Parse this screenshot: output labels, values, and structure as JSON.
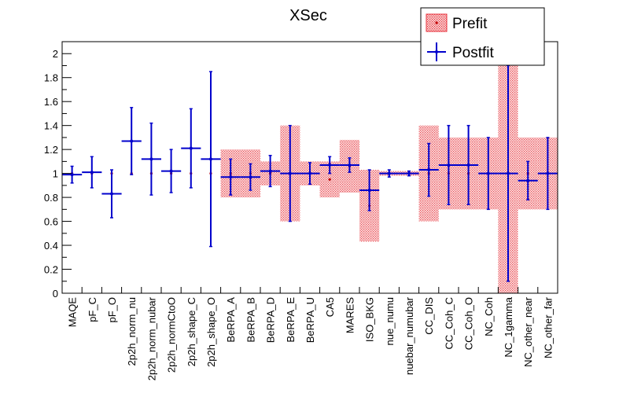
{
  "chart_data": {
    "type": "scatter",
    "title": "XSec",
    "xlabel": "",
    "ylabel": "",
    "ylim": [
      0,
      2.1
    ],
    "yticks": [
      "0",
      "0.2",
      "0.4",
      "0.6",
      "0.8",
      "1",
      "1.2",
      "1.4",
      "1.6",
      "1.8",
      "2"
    ],
    "grid": false,
    "legend_position": "top-right",
    "categories": [
      "MAQE",
      "pF_C",
      "pF_O",
      "2p2h_norm_nu",
      "2p2h_norm_nubar",
      "2p2h_normCtoO",
      "2p2h_shape_C",
      "2p2h_shape_O",
      "BeRPA_A",
      "BeRPA_B",
      "BeRPA_D",
      "BeRPA_E",
      "BeRPA_U",
      "CA5",
      "MARES",
      "ISO_BKG",
      "nue_numu",
      "nuebar_numubar",
      "CC_DIS",
      "CC_Coh_C",
      "CC_Coh_O",
      "NC_Coh",
      "NC_1gamma",
      "NC_other_near",
      "NC_other_far"
    ],
    "series": [
      {
        "name": "Prefit",
        "color": "#e8323c",
        "values": [
          1,
          1,
          1,
          1,
          1,
          1,
          1,
          1,
          1,
          1,
          1,
          1,
          1,
          0.95,
          1.06,
          0.73,
          1,
          1,
          1,
          1,
          1,
          1,
          1,
          1,
          1
        ],
        "errors": [
          0,
          0,
          0,
          0,
          0,
          0,
          0,
          0,
          0.2,
          0.2,
          0.1,
          0.4,
          0.1,
          0.15,
          0.22,
          0.3,
          0.02,
          0.02,
          0.4,
          0.3,
          0.3,
          0.3,
          1.0,
          0.3,
          0.3
        ]
      },
      {
        "name": "Postfit",
        "color": "#0000cc",
        "values": [
          0.99,
          1.01,
          0.83,
          1.27,
          1.12,
          1.02,
          1.21,
          1.12,
          0.97,
          0.97,
          1.02,
          1.0,
          1.0,
          1.07,
          1.07,
          0.86,
          1.0,
          1.0,
          1.03,
          1.07,
          1.07,
          1.0,
          1.0,
          0.94,
          1.0
        ],
        "errors": [
          0.07,
          0.13,
          0.2,
          0.28,
          0.3,
          0.18,
          0.33,
          0.73,
          0.15,
          0.11,
          0.13,
          0.4,
          0.09,
          0.07,
          0.06,
          0.17,
          0.03,
          0.02,
          0.22,
          0.33,
          0.33,
          0.3,
          0.9,
          0.16,
          0.3
        ]
      }
    ]
  }
}
